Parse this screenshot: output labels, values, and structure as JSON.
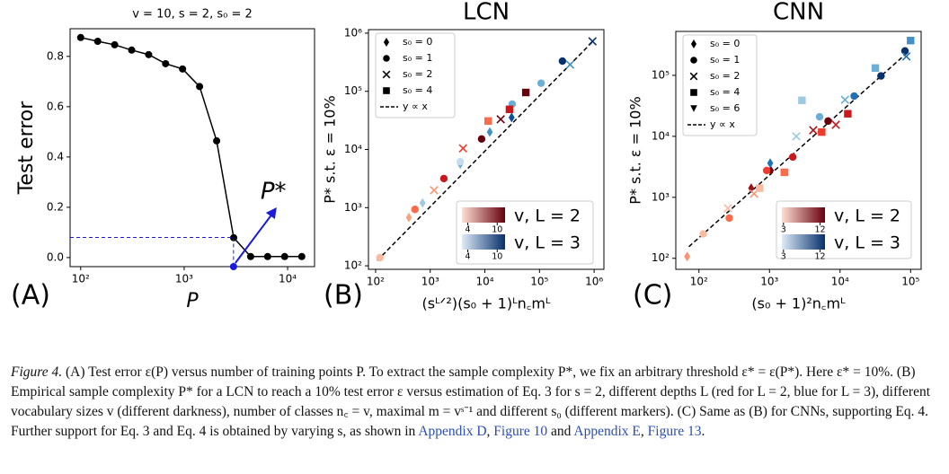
{
  "chart_data": [
    {
      "type": "line",
      "panel_label": "(A)",
      "title": "v = 10, s = 2, s₀ = 2",
      "x_label": "P",
      "y_label": "Test error",
      "xscale": "log",
      "yscale": "linear",
      "x": [
        100,
        146,
        213,
        311,
        454,
        662,
        965,
        1410,
        2060,
        3010,
        4390,
        6410,
        9360,
        13700
      ],
      "series": [
        {
          "color": "#000000",
          "values": [
            0.875,
            0.86,
            0.846,
            0.825,
            0.807,
            0.771,
            0.75,
            0.68,
            0.464,
            0.079,
            0.004,
            0.004,
            0.004,
            0.004
          ]
        }
      ],
      "xlim": [
        79,
        18200
      ],
      "ylim": [
        -0.036,
        0.91
      ],
      "xticks": [
        {
          "value": 100,
          "label": "10²"
        },
        {
          "value": 1000,
          "label": "10³"
        },
        {
          "value": 10000,
          "label": "10⁴"
        }
      ],
      "yticks": [
        {
          "value": 0,
          "label": "0.0"
        },
        0.2,
        0.4,
        0.6,
        0.8
      ],
      "pstar": {
        "label": "P*",
        "x": 3000,
        "y": 0.08,
        "color": "#1a1adc"
      }
    },
    {
      "type": "scatter",
      "panel_label": "(B)",
      "title": "LCN",
      "x_label": "(sᴸᐟ²)(s₀ + 1)ᴸn꜀mᴸ",
      "y_label": "P* s.t. ε = 10%",
      "xscale": "log",
      "yscale": "log",
      "xlim": [
        74,
        1510000
      ],
      "ylim": [
        87,
        1150000
      ],
      "xticks": [
        {
          "value": 100,
          "label": "10²"
        },
        {
          "value": 1000,
          "label": "10³"
        },
        {
          "value": 10000,
          "label": "10⁴"
        },
        {
          "value": 100000,
          "label": "10⁵"
        },
        {
          "value": 1000000,
          "label": "10⁶"
        }
      ],
      "yticks": [
        {
          "value": 100,
          "label": "10²"
        },
        {
          "value": 1000,
          "label": "10³"
        },
        {
          "value": 10000,
          "label": "10⁴"
        },
        {
          "value": 100000,
          "label": "10⁵"
        },
        {
          "value": 1000000,
          "label": "10⁶"
        }
      ],
      "series": [
        {
          "name": "s₀ = 0",
          "marker": "diamond",
          "x": [
            407,
            724,
            3548,
            12300,
            30900
          ],
          "values": [
            676,
            1202,
            5623,
            19950,
            35480
          ],
          "colors": [
            "#f4a582",
            "#9ecae1",
            "#6baed6",
            "#4292c6",
            "#08519c"
          ]
        },
        {
          "name": "s₀ = 1",
          "marker": "circle",
          "x": [
            120,
            525,
            1778,
            3548,
            8710,
            31600,
            107000,
            263000
          ],
          "values": [
            138,
            933,
            3162,
            6166,
            15140,
            60300,
            138000,
            331000
          ],
          "colors": [
            "#fcbba1",
            "#fb6a4a",
            "#cb181d",
            "#c6dbef",
            "#67000d",
            "#6baed6",
            "#6baed6",
            "#08306b"
          ]
        },
        {
          "name": "s₀ = 2",
          "marker": "x",
          "x": [
            1175,
            3981,
            19500,
            363000,
            933000
          ],
          "values": [
            1995,
            10470,
            33100,
            288000,
            724000
          ],
          "colors": [
            "#fc9272",
            "#ef3b2c",
            "#67000d",
            "#4292c6",
            "#08306b"
          ]
        },
        {
          "name": "s₀ = 4",
          "marker": "square",
          "x": [
            11480,
            28200,
            56200
          ],
          "values": [
            30900,
            49000,
            95500
          ],
          "colors": [
            "#fb6a4a",
            "#cb181d",
            "#67000d"
          ]
        }
      ],
      "fit": {
        "name": "y ∝ x",
        "x": [
          107,
          1000000
        ],
        "values": [
          123,
          759000
        ]
      },
      "colorbars": [
        {
          "label": "v, L = 2",
          "colors": [
            "#fee0d2",
            "#67000d"
          ],
          "lim": [
            2.8,
            11.6
          ],
          "ticks": [
            4,
            10
          ]
        },
        {
          "label": "v, L = 3",
          "colors": [
            "#deebf7",
            "#08306b"
          ],
          "lim": [
            2.8,
            11.6
          ],
          "ticks": [
            4,
            10
          ]
        }
      ]
    },
    {
      "type": "scatter",
      "panel_label": "(C)",
      "title": "CNN",
      "x_label": "(s₀ + 1)²n꜀mᴸ",
      "y_label": "P* s.t. ε = 10%",
      "xscale": "log",
      "yscale": "log",
      "xlim": [
        47,
        141000
      ],
      "ylim": [
        66,
        525000
      ],
      "xticks": [
        {
          "value": 100,
          "label": "10²"
        },
        {
          "value": 1000,
          "label": "10³"
        },
        {
          "value": 10000,
          "label": "10⁴"
        },
        {
          "value": 100000,
          "label": "10⁵"
        }
      ],
      "yticks": [
        {
          "value": 100,
          "label": "10²"
        },
        {
          "value": 1000,
          "label": "10³"
        },
        {
          "value": 10000,
          "label": "10⁴"
        },
        {
          "value": 100000,
          "label": "10⁵"
        }
      ],
      "series": [
        {
          "name": "s₀ = 0",
          "marker": "diamond",
          "x": [
            68,
            550,
            1047,
            1023
          ],
          "values": [
            107,
            1413,
            2754,
            3631
          ],
          "colors": [
            "#fc9272",
            "#a50f15",
            "#67000d",
            "#2171b5"
          ]
        },
        {
          "name": "s₀ = 1",
          "marker": "circle",
          "x": [
            115,
            269,
            912,
            2138,
            6761,
            5129,
            15850,
            38020,
            83180
          ],
          "values": [
            251,
            457,
            2754,
            4571,
            17780,
            20890,
            45710,
            97720,
            251200
          ],
          "colors": [
            "#fcbba1",
            "#fb6a4a",
            "#ef3b2c",
            "#cb181d",
            "#67000d",
            "#6baed6",
            "#2171b5",
            "#08306b",
            "#08306b"
          ]
        },
        {
          "name": "s₀ = 2",
          "marker": "x",
          "x": [
            257,
            603,
            2399,
            4169,
            11750,
            8710,
            87100
          ],
          "values": [
            661,
            1148,
            10000,
            12590,
            39810,
            15490,
            204200
          ],
          "colors": [
            "#fcbba1",
            "#fc9272",
            "#9ecae1",
            "#a50f15",
            "#6baed6",
            "#cb181d",
            "#2171b5"
          ]
        },
        {
          "name": "s₀ = 4",
          "marker": "square",
          "x": [
            724,
            1622,
            2884,
            5495,
            12880,
            31620,
            100000
          ],
          "values": [
            1413,
            2570,
            38900,
            11750,
            23440,
            131800,
            371500
          ],
          "colors": [
            "#fcbba1",
            "#fb6a4a",
            "#9ecae1",
            "#ef3b2c",
            "#cb181d",
            "#6baed6",
            "#4292c6"
          ]
        },
        {
          "name": "s₀ = 6",
          "marker": "triangle",
          "x": [],
          "values": [],
          "colors": []
        }
      ],
      "fit": {
        "name": "y ∝ x",
        "x": [
          72,
          95500
        ],
        "values": [
          155,
          251000
        ]
      },
      "colorbars": [
        {
          "label": "v, L = 2",
          "colors": [
            "#fee0d2",
            "#67000d"
          ],
          "lim": [
            2.6,
            13.2
          ],
          "ticks": [
            3,
            12
          ]
        },
        {
          "label": "v, L = 3",
          "colors": [
            "#deebf7",
            "#08306b"
          ],
          "lim": [
            2.6,
            13.2
          ],
          "ticks": [
            3,
            12
          ]
        }
      ]
    }
  ],
  "caption": {
    "label": "Figure 4.",
    "segments": [
      {
        "text": " (A) Test error ε(P) versus number of training points P. To extract the sample complexity P*, we fix an arbitrary threshold ε* = ε(P*). Here ε* = 10%. (B) Empirical sample complexity P* for a LCN to reach a 10% test error ε versus estimation of Eq. 3 for s = 2, different depths L (red for L = 2, blue for L = 3), different vocabulary sizes v (different darkness), number of classes n꜀ = v, maximal m = vˢ⁻¹ and different s₀ (different markers). (C) Same as (B) for CNNs, supporting Eq. 4. Further support for Eq. 3 and Eq. 4 is obtained by varying s, as shown in "
      },
      {
        "text": "Appendix D",
        "link": true
      },
      {
        "text": ", "
      },
      {
        "text": "Figure 10",
        "link": true
      },
      {
        "text": " and "
      },
      {
        "text": "Appendix E",
        "link": true
      },
      {
        "text": ", "
      },
      {
        "text": "Figure 13",
        "link": true
      },
      {
        "text": "."
      }
    ]
  }
}
